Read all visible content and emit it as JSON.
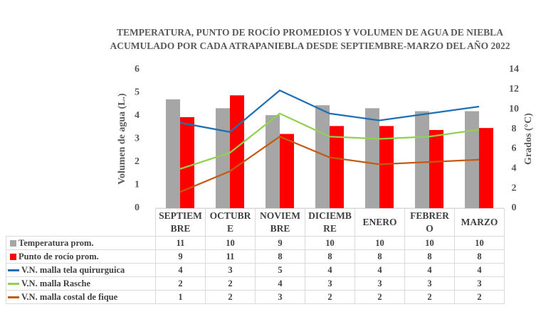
{
  "chart_data": {
    "type": "combo",
    "title": "TEMPERATURA, PUNTO DE ROCÍO PROMEDIOS Y VOLUMEN DE AGUA DE NIEBLA ACUMULADO  POR CADA ATRAPANIEBLA DESDE SEPTIEMBRE-MARZO DEL AÑO 2022",
    "y_label": "Volumen de agua (L.)",
    "y2_label": "Grados  (°C)",
    "categories": [
      "SEPTIEMBRE",
      "OCTUBRE",
      "NOVIEMBRE",
      "DICIEMBRE",
      "ENERO",
      "FEBRERO",
      "MARZO"
    ],
    "ylim": [
      0,
      6
    ],
    "yticks": [
      0,
      1,
      2,
      3,
      4,
      5,
      6
    ],
    "y2lim": [
      0,
      14
    ],
    "y2ticks": [
      0,
      2,
      4,
      6,
      8,
      10,
      12,
      14
    ],
    "grid": false,
    "series": [
      {
        "name": "Temperatura prom.",
        "type": "bar",
        "axis": "y2",
        "color": "#a6a6a6",
        "values": [
          11.0,
          10.1,
          9.4,
          10.4,
          10.1,
          9.8,
          9.8
        ],
        "value_labels": [
          "11",
          "10",
          "9",
          "10",
          "10",
          "10",
          "10"
        ]
      },
      {
        "name": "Punto de rocío prom.",
        "type": "bar",
        "axis": "y2",
        "color": "#ff0000",
        "values": [
          9.2,
          11.4,
          7.5,
          8.3,
          8.3,
          7.9,
          8.1
        ],
        "value_labels": [
          "9",
          "11",
          "8",
          "8",
          "8",
          "8",
          "8"
        ]
      },
      {
        "name": "V.N. malla tela quirurguica",
        "type": "line",
        "color": "#1f6fb5",
        "values": [
          3.7,
          3.3,
          5.1,
          4.1,
          3.8,
          4.1,
          4.4
        ],
        "value_labels": [
          "4",
          "3",
          "5",
          "4",
          "4",
          "4",
          "4"
        ]
      },
      {
        "name": "V.N. malla Rasche",
        "type": "line",
        "color": "#92d050",
        "values": [
          1.7,
          2.4,
          4.1,
          3.1,
          3.0,
          3.1,
          3.4
        ],
        "value_labels": [
          "2",
          "2",
          "4",
          "3",
          "3",
          "3",
          "3"
        ]
      },
      {
        "name": "V.N. malla costal de fique",
        "type": "line",
        "color": "#c55a11",
        "values": [
          0.7,
          1.6,
          3.1,
          2.2,
          1.9,
          2.0,
          2.1
        ],
        "value_labels": [
          "1",
          "2",
          "3",
          "2",
          "2",
          "2",
          "2"
        ]
      }
    ]
  }
}
